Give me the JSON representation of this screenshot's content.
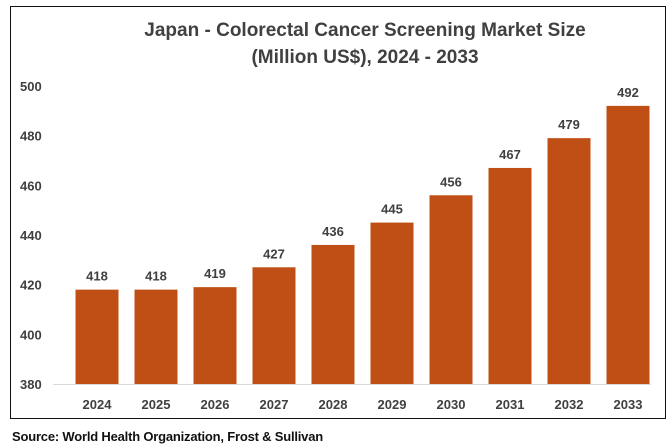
{
  "chart_data": {
    "type": "bar",
    "title": "Japan - Colorectal Cancer Screening Market Size",
    "subtitle": "(Million US$), 2024 - 2033",
    "categories": [
      "2024",
      "2025",
      "2026",
      "2027",
      "2028",
      "2029",
      "2030",
      "2031",
      "2032",
      "2033"
    ],
    "values": [
      418,
      418,
      419,
      427,
      436,
      445,
      456,
      467,
      479,
      492
    ],
    "xlabel": "",
    "ylabel": "",
    "ylim": [
      380,
      500
    ],
    "yticks": [
      380,
      400,
      420,
      440,
      460,
      480,
      500
    ],
    "grid": false,
    "bar_color": "#C04F15",
    "data_labels": true
  },
  "source": "Source: World Health Organization, Frost & Sullivan"
}
